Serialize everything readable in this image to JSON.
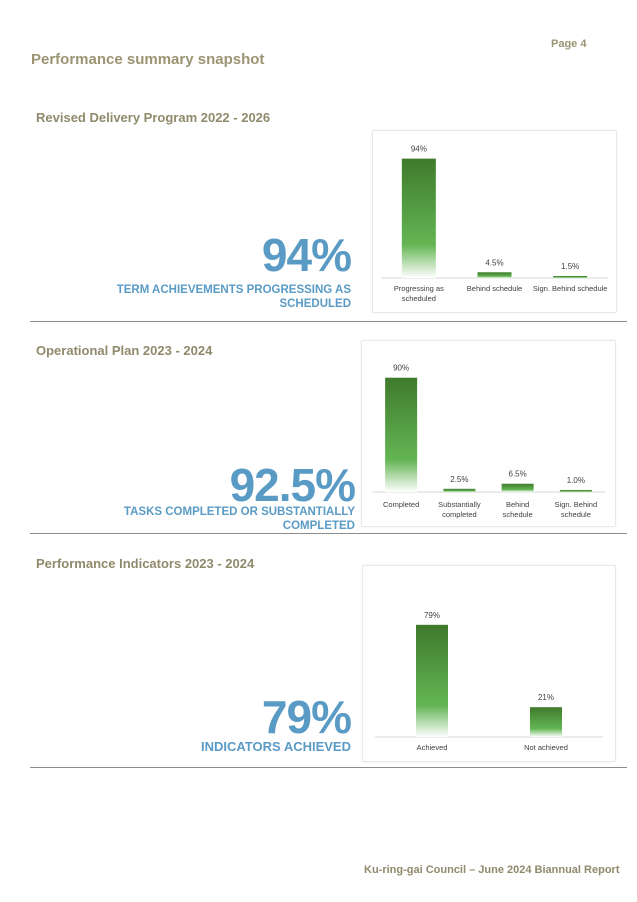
{
  "page": {
    "title": "Performance summary snapshot",
    "page_number": "Page 4",
    "footer": "Ku-ring-gai Council – June 2024 Biannual Report"
  },
  "sections": [
    {
      "title": "Revised Delivery Program 2022 - 2026",
      "headline": "94%",
      "caption_lines": [
        "TERM ACHIEVEMENTS PROGRESSING AS",
        "SCHEDULED"
      ]
    },
    {
      "title": "Operational Plan 2023 - 2024",
      "headline": "92.5%",
      "caption_lines": [
        "TASKS COMPLETED OR SUBSTANTIALLY",
        "COMPLETED"
      ]
    },
    {
      "title": "Performance Indicators 2023 - 2024",
      "headline": "79%",
      "caption_lines": [
        "INDICATORS ACHIEVED"
      ]
    }
  ],
  "colors": {
    "bar_top": "#3f7a2c",
    "bar_mid": "#63b553",
    "headline": "#5a9bc6",
    "section_title": "#8f8a6c"
  },
  "chart_data": [
    {
      "type": "bar",
      "title": "",
      "categories": [
        [
          "Progressing as",
          "scheduled"
        ],
        [
          "Behind schedule"
        ],
        [
          "Sign. Behind schedule"
        ]
      ],
      "values": [
        94,
        4.5,
        1.5
      ],
      "data_labels": [
        "94%",
        "4.5%",
        "1.5%"
      ],
      "ylim": [
        0,
        100
      ],
      "grid": false,
      "legend": "none"
    },
    {
      "type": "bar",
      "title": "",
      "categories": [
        [
          "Completed"
        ],
        [
          "Substantially",
          "completed"
        ],
        [
          "Behind",
          "schedule"
        ],
        [
          "Sign. Behind",
          "schedule"
        ]
      ],
      "values": [
        90,
        2.5,
        6.5,
        1.0
      ],
      "data_labels": [
        "90%",
        "2.5%",
        "6.5%",
        "1.0%"
      ],
      "ylim": [
        0,
        100
      ],
      "grid": false,
      "legend": "none"
    },
    {
      "type": "bar",
      "title": "",
      "categories": [
        [
          "Achieved"
        ],
        [
          "Not achieved"
        ]
      ],
      "values": [
        79,
        21
      ],
      "data_labels": [
        "79%",
        "21%"
      ],
      "ylim": [
        0,
        100
      ],
      "grid": false,
      "legend": "none"
    }
  ]
}
